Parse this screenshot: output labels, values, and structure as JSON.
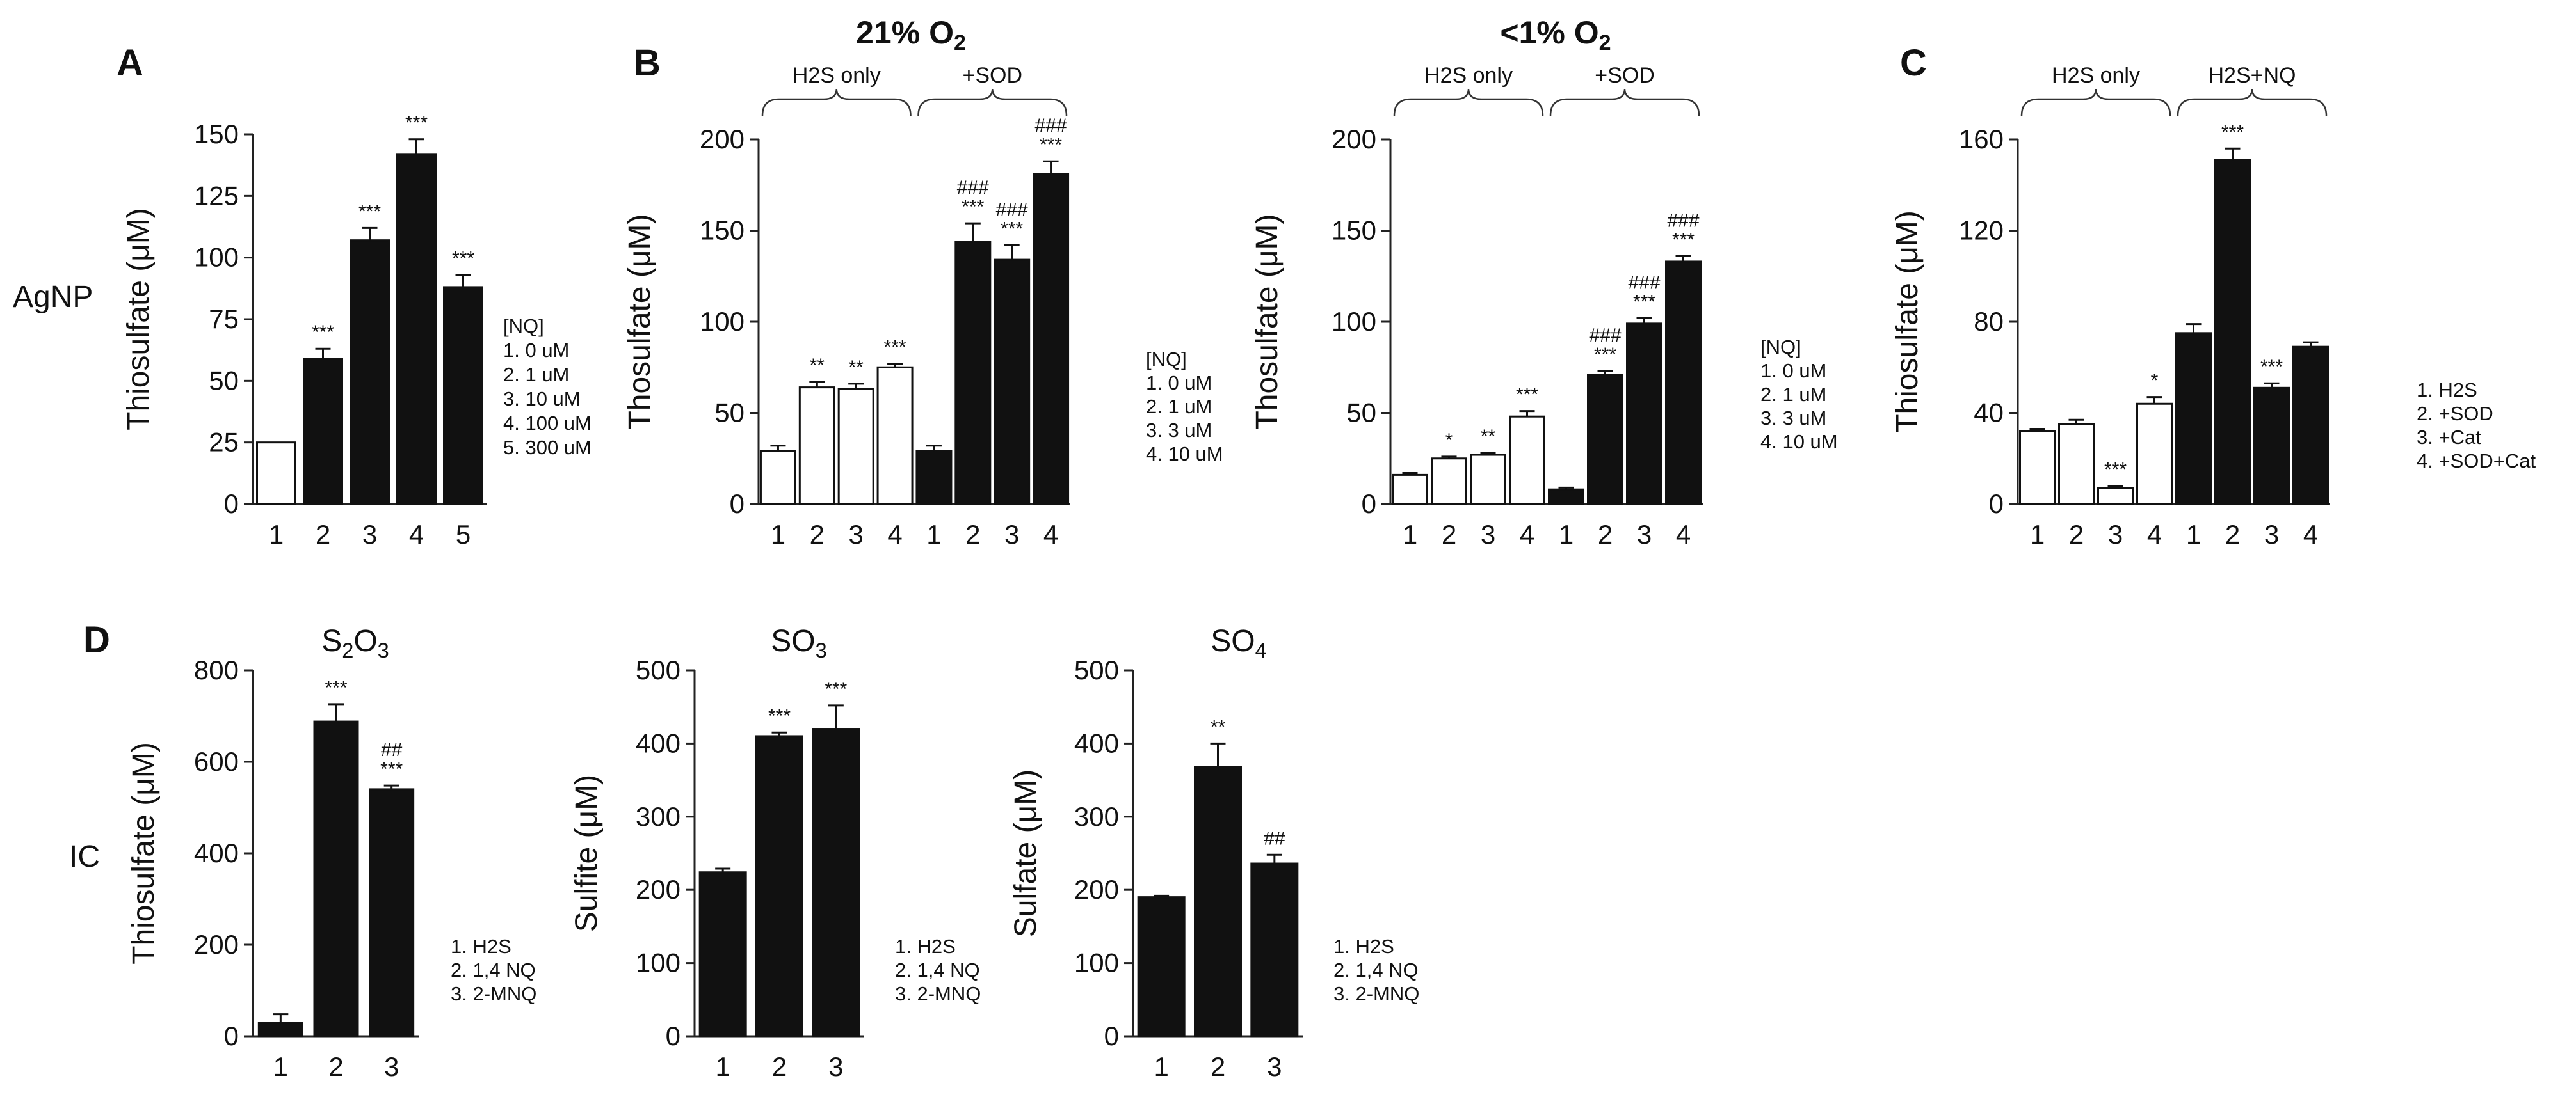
{
  "chart_data": [
    {
      "id": "A",
      "type": "bar",
      "panel_label": "A",
      "side_label": "AgNP",
      "ylabel": "Thiosulfate (μM)",
      "ylim": [
        0,
        150
      ],
      "yticks": [
        0,
        25,
        50,
        75,
        100,
        125,
        150
      ],
      "categories": [
        "1",
        "2",
        "3",
        "4",
        "5"
      ],
      "values": [
        25,
        59,
        107,
        142,
        88
      ],
      "errors": [
        0,
        4,
        5,
        6,
        5
      ],
      "fill": [
        "white",
        "black",
        "black",
        "black",
        "black"
      ],
      "sig": [
        "",
        "***",
        "***",
        "***",
        "***"
      ],
      "sig2": [
        "",
        "",
        "",
        "",
        ""
      ],
      "legend": [
        "[NQ]",
        "1. 0 uM",
        "2. 1 uM",
        "3. 10 uM",
        "4. 100 uM",
        "5. 300 uM"
      ]
    },
    {
      "id": "B1",
      "type": "bar",
      "panel_label": "B",
      "title": "21% O2",
      "ylabel": "Thosulfate (μM)",
      "ylim": [
        0,
        200
      ],
      "yticks": [
        0,
        50,
        100,
        150,
        200
      ],
      "categories": [
        "1",
        "2",
        "3",
        "4",
        "1",
        "2",
        "3",
        "4"
      ],
      "values": [
        29,
        64,
        63,
        75,
        29,
        144,
        134,
        181
      ],
      "errors": [
        3,
        3,
        3,
        2,
        3,
        10,
        8,
        7
      ],
      "fill": [
        "white",
        "white",
        "white",
        "white",
        "black",
        "black",
        "black",
        "black"
      ],
      "sig": [
        "",
        "**",
        "**",
        "***",
        "",
        "***",
        "***",
        "***"
      ],
      "sig2": [
        "",
        "",
        "",
        "",
        "",
        "###",
        "###",
        "###"
      ],
      "groups": [
        {
          "label": "H2S only",
          "from": 0,
          "to": 3
        },
        {
          "label": "+SOD",
          "from": 4,
          "to": 7
        }
      ],
      "legend": [
        "[NQ]",
        "1. 0 uM",
        "2. 1 uM",
        "3. 3 uM",
        "4. 10 uM"
      ]
    },
    {
      "id": "B2",
      "type": "bar",
      "title": "<1% O2",
      "ylabel": "Thosulfate (μM)",
      "ylim": [
        0,
        200
      ],
      "yticks": [
        0,
        50,
        100,
        150,
        200
      ],
      "categories": [
        "1",
        "2",
        "3",
        "4",
        "1",
        "2",
        "3",
        "4"
      ],
      "values": [
        16,
        25,
        27,
        48,
        8,
        71,
        99,
        133
      ],
      "errors": [
        1,
        1,
        1,
        3,
        1,
        2,
        3,
        3
      ],
      "fill": [
        "white",
        "white",
        "white",
        "white",
        "black",
        "black",
        "black",
        "black"
      ],
      "sig": [
        "",
        "*",
        "**",
        "***",
        "",
        "***",
        "***",
        "***"
      ],
      "sig2": [
        "",
        "",
        "",
        "",
        "",
        "###",
        "###",
        "###"
      ],
      "groups": [
        {
          "label": "H2S only",
          "from": 0,
          "to": 3
        },
        {
          "label": "+SOD",
          "from": 4,
          "to": 7
        }
      ],
      "legend": [
        "[NQ]",
        "1. 0 uM",
        "2. 1 uM",
        "3. 3 uM",
        "4. 10 uM"
      ]
    },
    {
      "id": "C",
      "type": "bar",
      "panel_label": "C",
      "ylabel": "Thiosulfate (μM)",
      "ylim": [
        0,
        160
      ],
      "yticks": [
        0,
        40,
        80,
        120,
        160
      ],
      "categories": [
        "1",
        "2",
        "3",
        "4",
        "1",
        "2",
        "3",
        "4"
      ],
      "values": [
        32,
        35,
        7,
        44,
        75,
        151,
        51,
        69
      ],
      "errors": [
        1,
        2,
        1,
        3,
        4,
        5,
        2,
        2
      ],
      "fill": [
        "white",
        "white",
        "white",
        "white",
        "black",
        "black",
        "black",
        "black"
      ],
      "sig": [
        "",
        "",
        "***",
        "*",
        "",
        "***",
        "***",
        ""
      ],
      "sig2": [
        "",
        "",
        "",
        "",
        "",
        "",
        "",
        ""
      ],
      "groups": [
        {
          "label": "H2S only",
          "from": 0,
          "to": 3
        },
        {
          "label": "H2S+NQ",
          "from": 4,
          "to": 7
        }
      ],
      "legend": [
        "1.  H2S",
        "2. +SOD",
        "3. +Cat",
        "4. +SOD+Cat"
      ]
    },
    {
      "id": "D1",
      "type": "bar",
      "panel_label": "D",
      "side_label": "IC",
      "title": "S2O3",
      "ylabel": "Thiosulfate (μM)",
      "ylim": [
        0,
        800
      ],
      "yticks": [
        0,
        200,
        400,
        600,
        800
      ],
      "categories": [
        "1",
        "2",
        "3"
      ],
      "values": [
        30,
        688,
        540
      ],
      "errors": [
        18,
        38,
        8
      ],
      "fill": [
        "black",
        "black",
        "black"
      ],
      "sig": [
        "",
        "***",
        "***"
      ],
      "sig2": [
        "",
        "",
        "##"
      ],
      "legend": [
        "1. H2S",
        "2. 1,4 NQ",
        "3. 2-MNQ"
      ]
    },
    {
      "id": "D2",
      "type": "bar",
      "title": "SO3",
      "ylabel": "Sulfite (μM)",
      "ylim": [
        0,
        500
      ],
      "yticks": [
        0,
        100,
        200,
        300,
        400,
        500
      ],
      "categories": [
        "1",
        "2",
        "3"
      ],
      "values": [
        224,
        410,
        420
      ],
      "errors": [
        5,
        5,
        32
      ],
      "fill": [
        "black",
        "black",
        "black"
      ],
      "sig": [
        "",
        "***",
        "***"
      ],
      "sig2": [
        "",
        "",
        ""
      ],
      "legend": [
        "1. H2S",
        "2. 1,4 NQ",
        "3. 2-MNQ"
      ]
    },
    {
      "id": "D3",
      "type": "bar",
      "title": "SO4",
      "ylabel": "Sulfate (μM)",
      "ylim": [
        0,
        500
      ],
      "yticks": [
        0,
        100,
        200,
        300,
        400,
        500
      ],
      "categories": [
        "1",
        "2",
        "3"
      ],
      "values": [
        190,
        368,
        236
      ],
      "errors": [
        2,
        32,
        12
      ],
      "fill": [
        "black",
        "black",
        "black"
      ],
      "sig": [
        "",
        "**",
        ""
      ],
      "sig2": [
        "",
        "",
        "##"
      ],
      "legend": [
        "1. H2S",
        "2. 1,4 NQ",
        "3. 2-MNQ"
      ]
    }
  ]
}
